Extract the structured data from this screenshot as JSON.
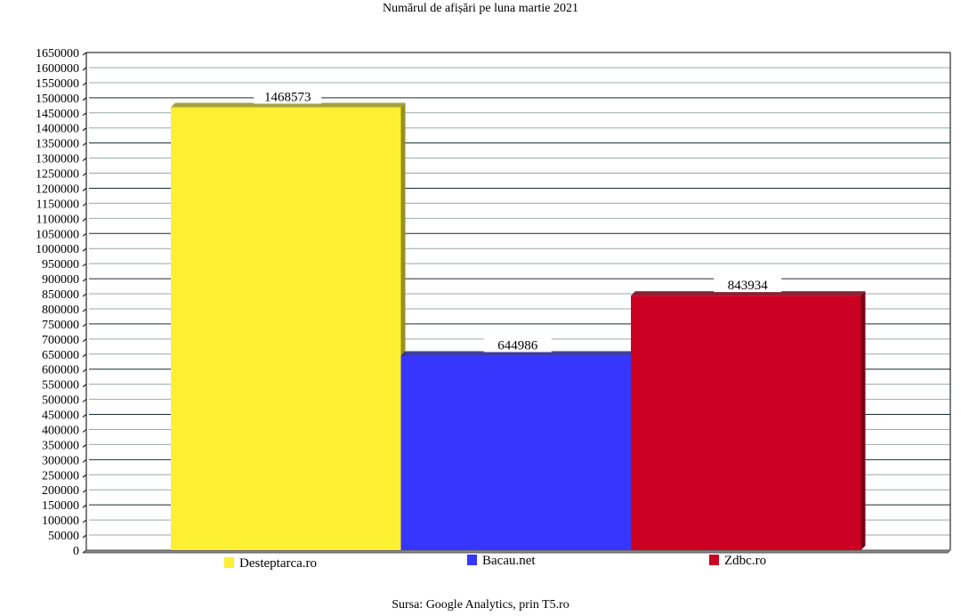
{
  "chart_data": {
    "type": "bar",
    "title": "Numărul de afișări pe luna martie 2021",
    "caption": "Sursa: Google Analytics, prin T5.ro",
    "categories": [
      "Desteptarca.ro",
      "Bacau.net",
      "Zdbc.ro"
    ],
    "values": [
      1468573,
      644986,
      843934
    ],
    "data_labels": [
      "1468573",
      "644986",
      "843934"
    ],
    "colors": [
      "#fdef32",
      "#3636ff",
      "#cc0022"
    ],
    "ylim": [
      0,
      1650000
    ],
    "ytick_step": 50000,
    "grid": true,
    "legend": "bottom",
    "style": "3d"
  }
}
